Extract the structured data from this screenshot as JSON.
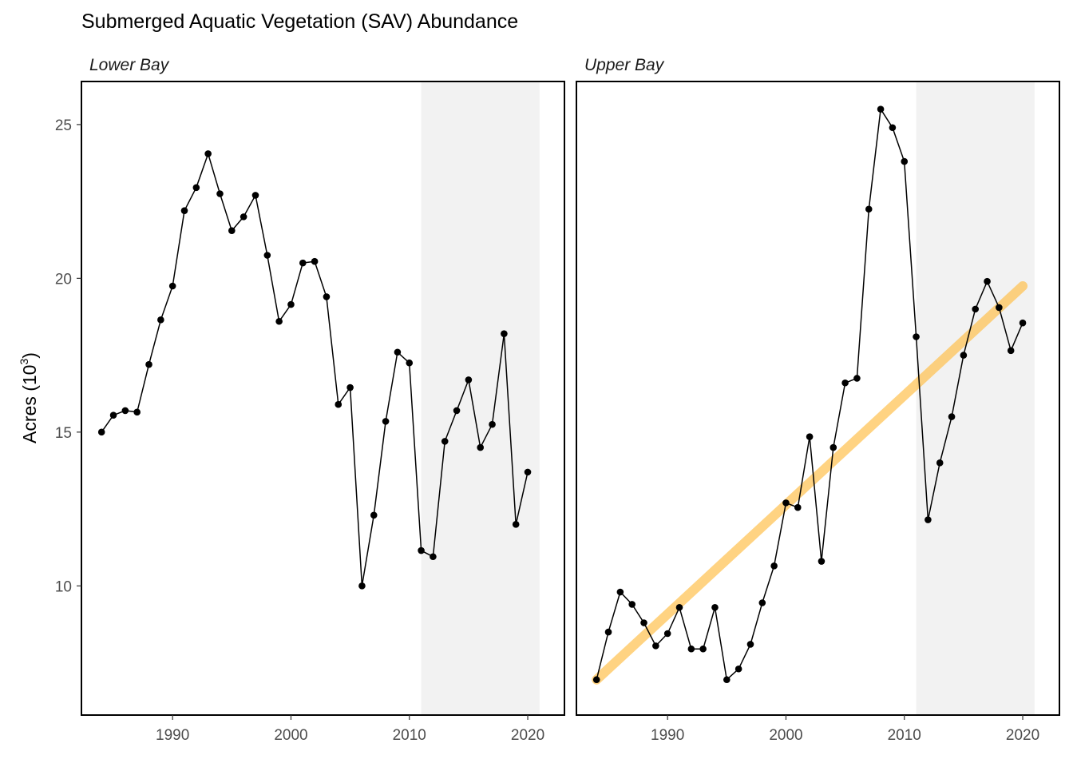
{
  "chart_data": {
    "type": "line",
    "title": "Submerged Aquatic Vegetation (SAV) Abundance",
    "ylabel": "Acres (10",
    "ylabel_superscript": "3",
    "ylabel_suffix": ")",
    "xlabel": "",
    "xlim": [
      1982.3,
      2023.1
    ],
    "ylim": [
      5.8,
      26.4
    ],
    "x_ticks": [
      1990,
      2000,
      2010,
      2020
    ],
    "x_tick_labels": [
      "1990",
      "2000",
      "2010",
      "2020"
    ],
    "y_ticks": [
      10,
      15,
      20,
      25
    ],
    "y_tick_labels": [
      "10",
      "15",
      "20",
      "25"
    ],
    "grid": false,
    "shaded_period": [
      2011,
      2021
    ],
    "colors": {
      "line": "#000000",
      "points": "#000000",
      "shading": "#f2f2f2",
      "trend": "#ffc04d",
      "panel_border": "#000000"
    },
    "panels": [
      {
        "name": "Lower Bay",
        "x": [
          1984,
          1985,
          1986,
          1987,
          1988,
          1989,
          1990,
          1991,
          1992,
          1993,
          1994,
          1995,
          1996,
          1997,
          1998,
          1999,
          2000,
          2001,
          2002,
          2003,
          2004,
          2005,
          2006,
          2007,
          2008,
          2009,
          2010,
          2011,
          2012,
          2013,
          2014,
          2015,
          2016,
          2017,
          2018,
          2019,
          2020
        ],
        "y": [
          15.0,
          15.55,
          15.7,
          15.65,
          17.2,
          18.65,
          19.75,
          22.2,
          22.95,
          24.05,
          22.75,
          21.55,
          22.0,
          22.7,
          20.75,
          18.6,
          19.15,
          20.5,
          20.55,
          19.4,
          15.9,
          16.45,
          10.0,
          12.3,
          15.35,
          17.6,
          17.25,
          11.15,
          10.95,
          14.7,
          15.7,
          16.7,
          14.5,
          15.25,
          18.2,
          12.0,
          13.7
        ],
        "trend": null
      },
      {
        "name": "Upper Bay",
        "x": [
          1984,
          1985,
          1986,
          1987,
          1988,
          1989,
          1990,
          1991,
          1992,
          1993,
          1994,
          1995,
          1996,
          1997,
          1998,
          1999,
          2000,
          2001,
          2002,
          2003,
          2004,
          2005,
          2006,
          2007,
          2008,
          2009,
          2010,
          2011,
          2012,
          2013,
          2014,
          2015,
          2016,
          2017,
          2018,
          2019,
          2020
        ],
        "y": [
          6.95,
          8.5,
          9.8,
          9.4,
          8.8,
          8.05,
          8.45,
          9.3,
          7.95,
          7.95,
          9.3,
          6.95,
          7.3,
          8.1,
          9.45,
          10.65,
          12.7,
          12.55,
          14.85,
          10.8,
          14.5,
          16.6,
          16.75,
          22.25,
          25.5,
          24.9,
          23.8,
          18.1,
          12.15,
          14.0,
          15.5,
          17.5,
          19.0,
          19.9,
          19.05,
          17.65,
          18.55
        ],
        "trend": {
          "x": [
            1984,
            2020
          ],
          "y": [
            6.95,
            19.75
          ]
        }
      }
    ]
  }
}
